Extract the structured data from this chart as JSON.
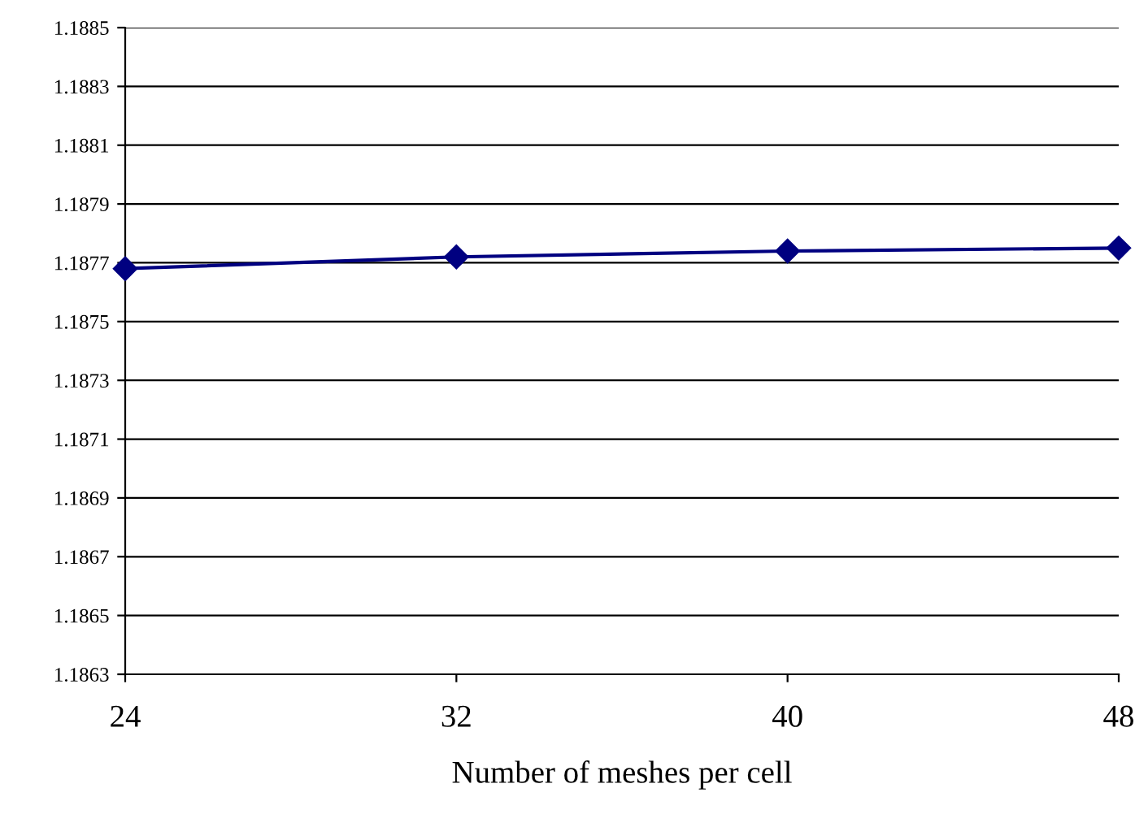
{
  "chart_data": {
    "type": "line",
    "xlabel": "Number of meshes per cell",
    "x": [
      24,
      32,
      40,
      48
    ],
    "series": [
      {
        "color": "#000080",
        "values": [
          1.18768,
          1.18772,
          1.18774,
          1.18775
        ]
      }
    ],
    "xlim": [
      24,
      48
    ],
    "xticks": [
      24,
      32,
      40,
      48
    ],
    "ylim": [
      1.1863,
      1.1885
    ],
    "yticks": [
      1.1863,
      1.1865,
      1.1867,
      1.1869,
      1.1871,
      1.1873,
      1.1875,
      1.1877,
      1.1879,
      1.1881,
      1.1883,
      1.1885
    ],
    "grid": "y",
    "marker": "diamond",
    "line_style": "solid"
  }
}
